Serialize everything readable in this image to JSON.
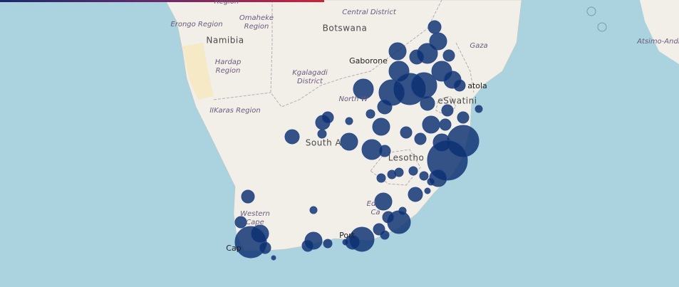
{
  "map": {
    "labels": [
      "Region",
      "Central District",
      "Erongo Region",
      "Omaheke",
      "Region",
      "Namibia",
      "Botswana",
      "Gaza",
      "Atsimo-Andr",
      "Gaborone",
      "Hardap",
      "Region",
      "Kgalagadi",
      "District",
      "North W",
      "atola",
      "eSwatini",
      "IIKaras Region",
      "South A",
      "Lesotho",
      "Western",
      "Cape",
      "Ed",
      "Ca",
      "Port",
      "Cap"
    ]
  }
}
